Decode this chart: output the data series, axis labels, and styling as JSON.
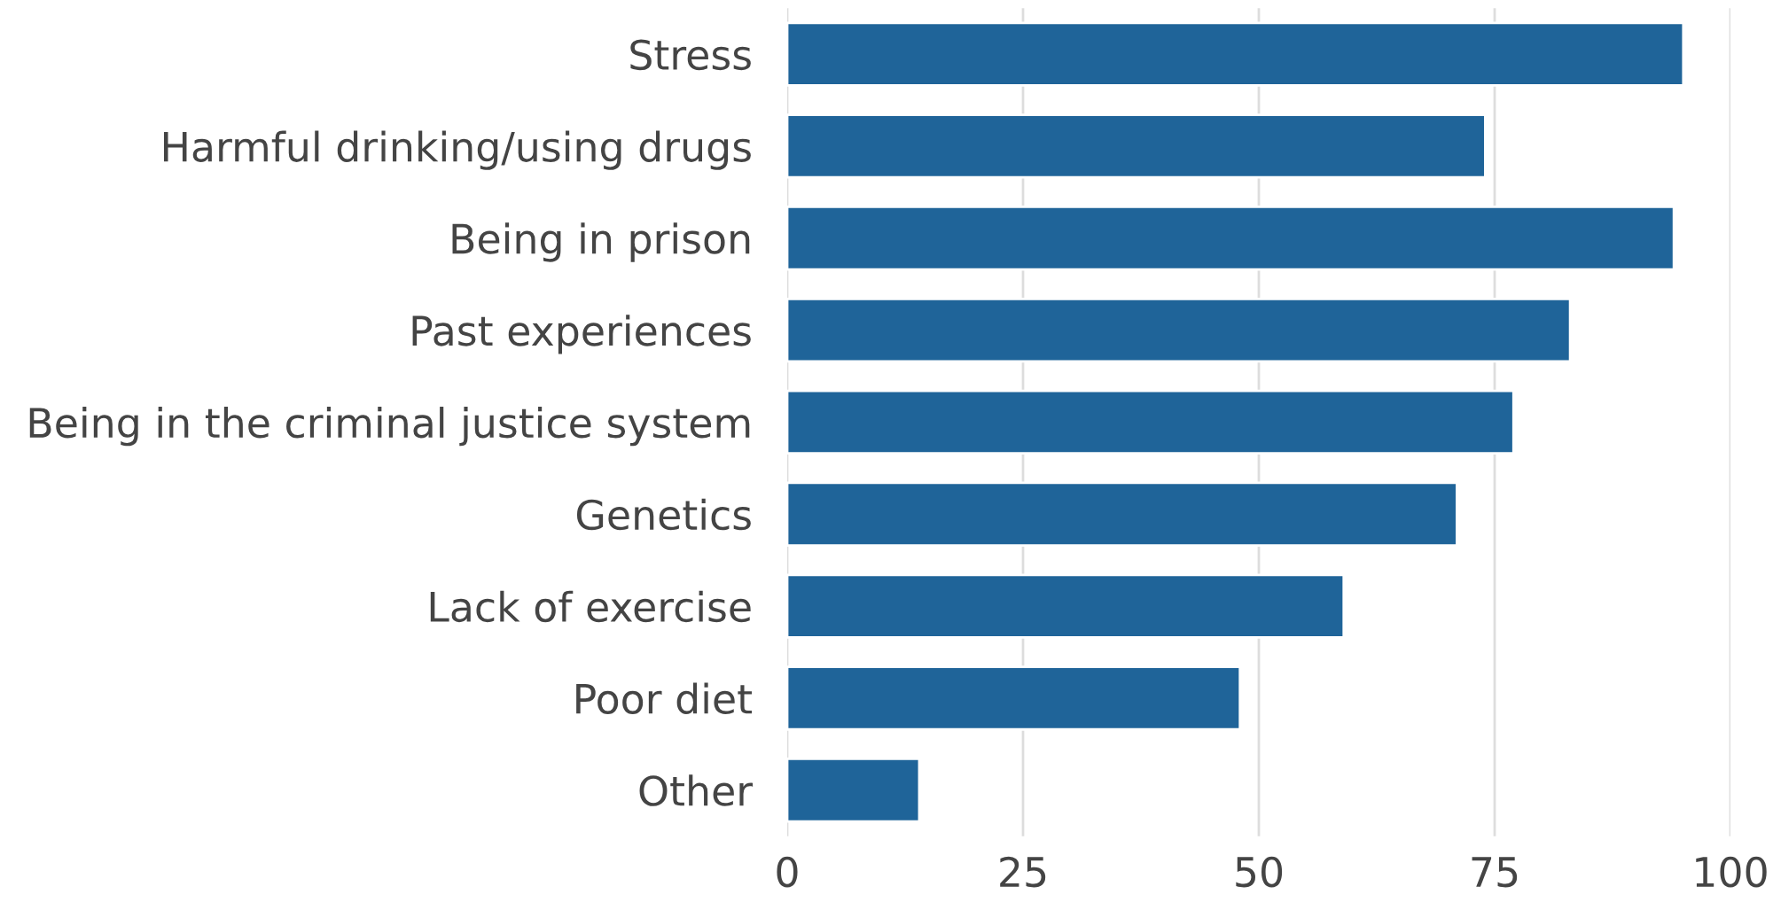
{
  "chart_data": {
    "type": "bar",
    "orientation": "horizontal",
    "categories": [
      "Stress",
      "Harmful drinking/using drugs",
      "Being in prison",
      "Past experiences",
      "Being in the criminal justice system",
      "Genetics",
      "Lack of exercise",
      "Poor diet",
      "Other"
    ],
    "values": [
      95,
      74,
      94,
      83,
      77,
      71,
      59,
      48,
      14
    ],
    "color": "#1f6499",
    "xlim": [
      0,
      100
    ],
    "xticks": [
      0,
      25,
      50,
      75,
      100
    ],
    "grid": "x"
  }
}
